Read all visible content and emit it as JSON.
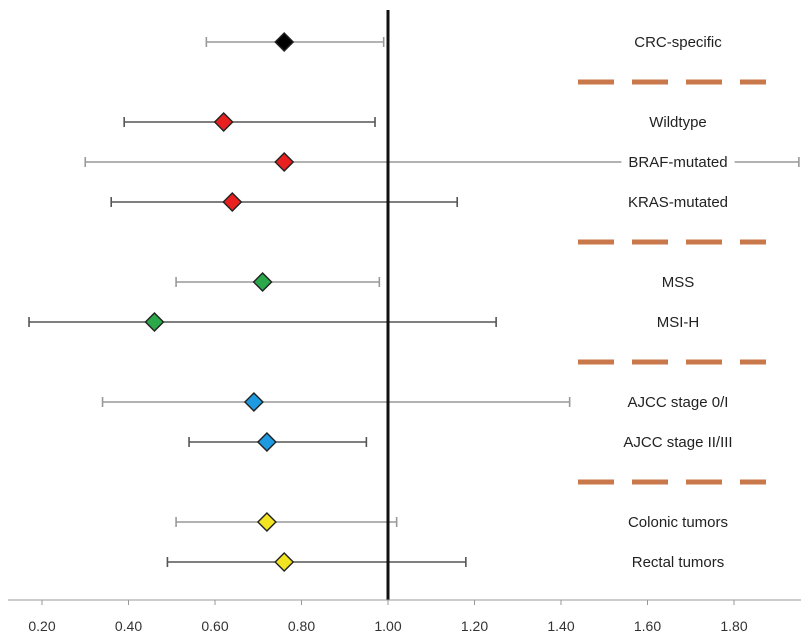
{
  "chart_data": {
    "type": "scatter",
    "title": "",
    "xlabel": "",
    "ylabel": "",
    "xlim": [
      0.15,
      1.95
    ],
    "xticks": [
      "0.20",
      "0.40",
      "0.60",
      "0.80",
      "1.00",
      "1.20",
      "1.40",
      "1.60",
      "1.80"
    ],
    "reference_line": 1.0,
    "separator_color": "#c8784a",
    "rows": [
      {
        "label": "CRC-specific",
        "estimate": 0.76,
        "lower": 0.58,
        "upper": 0.99,
        "marker_color": "#000000",
        "ci_color": "#999999"
      },
      {
        "separator": true
      },
      {
        "label": "Wildtype",
        "estimate": 0.62,
        "lower": 0.39,
        "upper": 0.97,
        "marker_color": "#e82020",
        "ci_color": "#555555"
      },
      {
        "label": "BRAF-mutated",
        "estimate": 0.76,
        "lower": 0.3,
        "upper": 1.95,
        "marker_color": "#e82020",
        "ci_color": "#999999"
      },
      {
        "label": "KRAS-mutated",
        "estimate": 0.64,
        "lower": 0.36,
        "upper": 1.16,
        "marker_color": "#e82020",
        "ci_color": "#555555"
      },
      {
        "separator": true
      },
      {
        "label": "MSS",
        "estimate": 0.71,
        "lower": 0.51,
        "upper": 0.98,
        "marker_color": "#2aa84a",
        "ci_color": "#999999"
      },
      {
        "label": "MSI-H",
        "estimate": 0.46,
        "lower": 0.17,
        "upper": 1.25,
        "marker_color": "#2aa84a",
        "ci_color": "#555555"
      },
      {
        "separator": true
      },
      {
        "label": "AJCC stage 0/I",
        "estimate": 0.69,
        "lower": 0.34,
        "upper": 1.42,
        "marker_color": "#1e9be0",
        "ci_color": "#999999"
      },
      {
        "label": "AJCC stage II/III",
        "estimate": 0.72,
        "lower": 0.54,
        "upper": 0.95,
        "marker_color": "#1e9be0",
        "ci_color": "#555555"
      },
      {
        "separator": true
      },
      {
        "label": "Colonic tumors",
        "estimate": 0.72,
        "lower": 0.51,
        "upper": 1.02,
        "marker_color": "#f2e420",
        "ci_color": "#999999"
      },
      {
        "label": "Rectal tumors",
        "estimate": 0.76,
        "lower": 0.49,
        "upper": 1.18,
        "marker_color": "#f2e420",
        "ci_color": "#555555"
      }
    ]
  }
}
